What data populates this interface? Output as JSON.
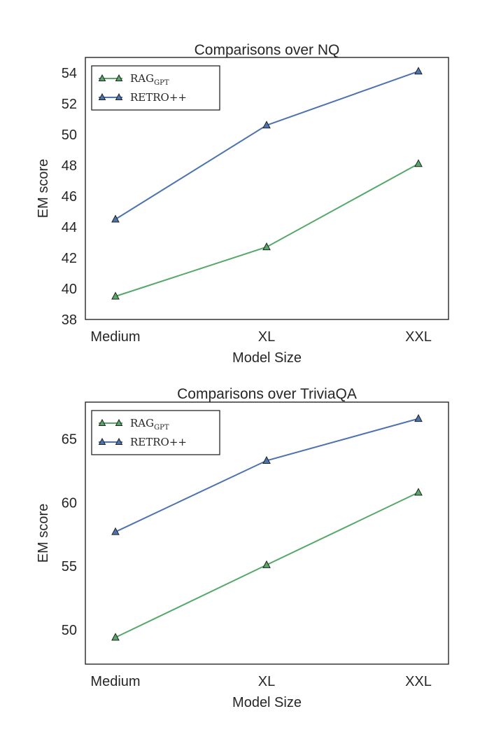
{
  "chart_data": [
    {
      "type": "line",
      "title": "Comparisons over NQ",
      "xlabel": "Model Size",
      "ylabel": "EM score",
      "categories": [
        "Medium",
        "XL",
        "XXL"
      ],
      "ylim": [
        38,
        55
      ],
      "yticks": [
        38,
        40,
        42,
        44,
        46,
        48,
        50,
        52,
        54
      ],
      "legend_position": "top-left",
      "grid": false,
      "series": [
        {
          "name": "RAG",
          "name_sub": "GPT",
          "color": "#55a868",
          "marker": "triangle",
          "values": [
            39.5,
            42.7,
            48.1
          ]
        },
        {
          "name": "RETRO++",
          "color": "#4c72b0",
          "marker": "triangle",
          "values": [
            44.5,
            50.6,
            54.1
          ]
        }
      ]
    },
    {
      "type": "line",
      "title": "Comparisons over TriviaQA",
      "xlabel": "Model Size",
      "ylabel": "EM score",
      "categories": [
        "Medium",
        "XL",
        "XXL"
      ],
      "ylim": [
        47.3,
        67.9
      ],
      "yticks": [
        50,
        55,
        60,
        65
      ],
      "legend_position": "top-left",
      "grid": false,
      "series": [
        {
          "name": "RAG",
          "name_sub": "GPT",
          "color": "#55a868",
          "marker": "triangle",
          "values": [
            49.4,
            55.1,
            60.8
          ]
        },
        {
          "name": "RETRO++",
          "color": "#4c72b0",
          "marker": "triangle",
          "values": [
            57.7,
            63.3,
            66.6
          ]
        }
      ]
    }
  ]
}
